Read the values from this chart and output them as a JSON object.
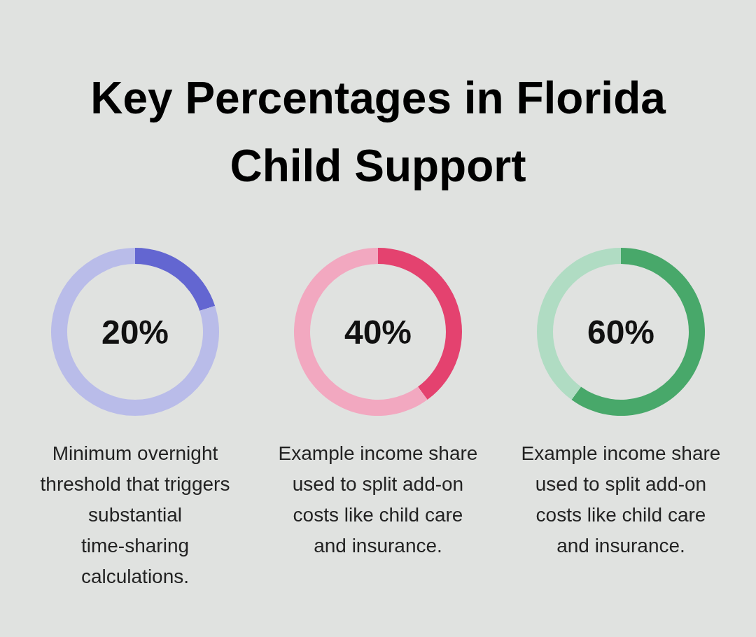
{
  "chart_data": [
    {
      "type": "donut",
      "title": "Key Percentages in Florida Child Support",
      "categories": [
        null,
        null
      ],
      "values": [
        20,
        80
      ],
      "colors": [
        "#6366d1",
        "#b9bce9"
      ],
      "annotations": [
        "20%",
        "Minimum overnight threshold that triggers substantial time-sharing calculations."
      ]
    },
    {
      "type": "donut",
      "categories": [
        null,
        null
      ],
      "values": [
        40,
        60
      ],
      "colors": [
        "#e4426f",
        "#f2a8c0"
      ],
      "annotations": [
        "40%",
        "Example income share used to split add-on costs like child care and insurance."
      ]
    },
    {
      "type": "donut",
      "categories": [
        null,
        null
      ],
      "values": [
        60,
        40
      ],
      "colors": [
        "#48a86a",
        "#b0dcc3"
      ],
      "annotations": [
        "60%",
        "Example income share used to split add-on costs like child care and insurance."
      ]
    }
  ]
}
